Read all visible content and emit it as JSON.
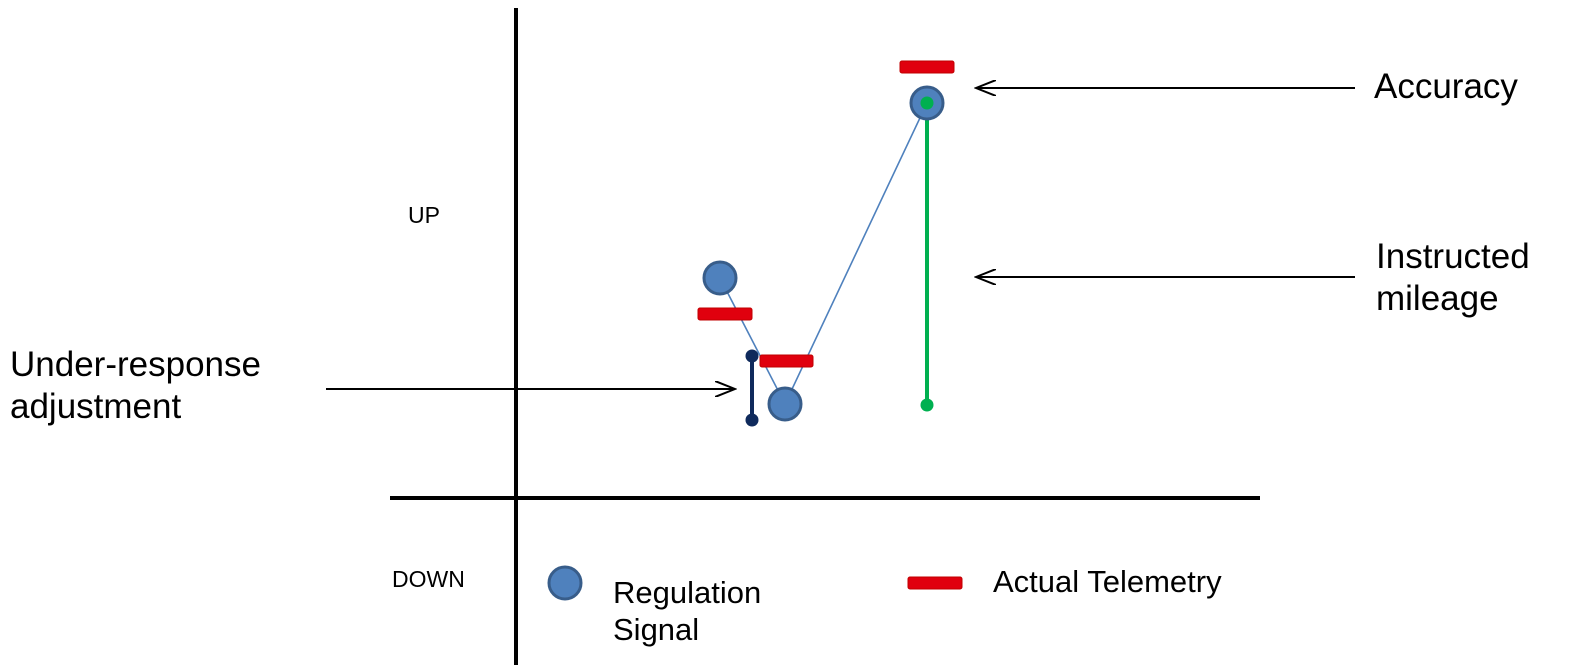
{
  "axis": {
    "up_label": "UP",
    "down_label": "DOWN"
  },
  "legend": {
    "regulation_signal": "Regulation\nSignal",
    "actual_telemetry": "Actual Telemetry"
  },
  "annotations": {
    "accuracy": "Accuracy",
    "instructed_mileage": "Instructed\nmileage",
    "under_response_adjustment": "Under-response\nadjustment"
  },
  "colors": {
    "axis": "#000000",
    "regulation_signal_fill": "#4f81bd",
    "regulation_signal_stroke": "#385d8a",
    "signal_line": "#4f81bd",
    "actual_telemetry": "#e0000e",
    "instructed_mileage_bar": "#00b050",
    "under_response_bar": "#0f2a5c",
    "arrow": "#000000"
  }
}
